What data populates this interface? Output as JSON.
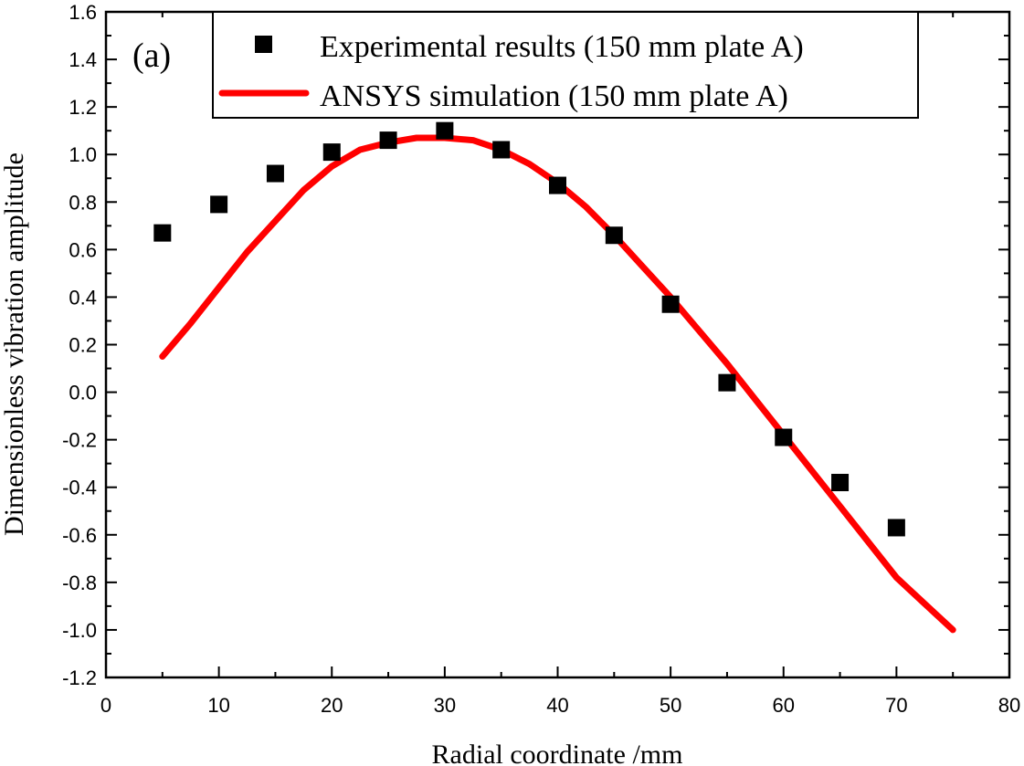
{
  "chart_data": {
    "type": "scatter",
    "panel_label": "(a)",
    "xlabel": "Radial coordinate /mm",
    "ylabel": "Dimensionless vibration amplitude",
    "xlim": [
      0,
      80
    ],
    "ylim": [
      -1.2,
      1.6
    ],
    "xticks": [
      "0",
      "10",
      "20",
      "30",
      "40",
      "50",
      "60",
      "70",
      "80"
    ],
    "yticks": [
      "-1.2",
      "-1.0",
      "-0.8",
      "-0.6",
      "-0.4",
      "-0.2",
      "0.0",
      "0.2",
      "0.4",
      "0.6",
      "0.8",
      "1.0",
      "1.2",
      "1.4",
      "1.6"
    ],
    "legend_position": "top",
    "series": [
      {
        "name": "Experimental results (150 mm plate A)",
        "kind": "scatter",
        "marker": "square",
        "color": "#000000",
        "x": [
          5,
          10,
          15,
          20,
          25,
          30,
          35,
          40,
          45,
          50,
          55,
          60,
          65,
          70
        ],
        "y": [
          0.67,
          0.79,
          0.92,
          1.01,
          1.06,
          1.1,
          1.02,
          0.87,
          0.66,
          0.37,
          0.04,
          -0.19,
          -0.38,
          -0.57
        ]
      },
      {
        "name": "ANSYS simulation (150 mm plate A)",
        "kind": "line",
        "color": "#ff0000",
        "x": [
          5,
          7.5,
          10,
          12.5,
          15,
          17.5,
          20,
          22.5,
          25,
          27.5,
          30,
          32.5,
          35,
          37.5,
          40,
          42.5,
          45,
          47.5,
          50,
          52.5,
          55,
          57.5,
          60,
          62.5,
          65,
          67.5,
          70,
          72.5,
          75
        ],
        "y": [
          0.15,
          0.29,
          0.44,
          0.59,
          0.72,
          0.85,
          0.95,
          1.02,
          1.05,
          1.07,
          1.07,
          1.06,
          1.02,
          0.96,
          0.88,
          0.78,
          0.66,
          0.53,
          0.4,
          0.26,
          0.12,
          -0.03,
          -0.18,
          -0.33,
          -0.48,
          -0.63,
          -0.78,
          -0.89,
          -1.0
        ]
      }
    ]
  }
}
